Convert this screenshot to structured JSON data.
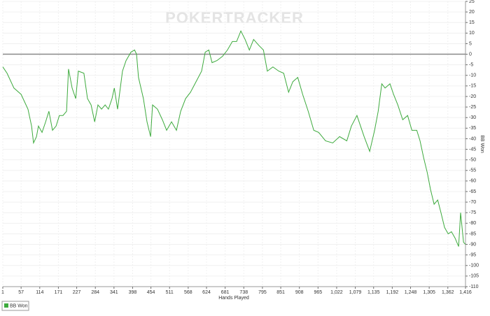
{
  "chart_data": {
    "type": "line",
    "watermark": "POKERTRACKER",
    "xlabel": "Hands Played",
    "ylabel": "BB Won",
    "x": [
      1,
      14,
      35,
      57,
      78,
      89,
      95,
      104,
      110,
      121,
      132,
      142,
      153,
      164,
      174,
      185,
      196,
      202,
      213,
      224,
      232,
      249,
      260,
      271,
      282,
      292,
      303,
      314,
      324,
      335,
      342,
      352,
      367,
      378,
      393,
      404,
      410,
      416,
      431,
      442,
      453,
      459,
      474,
      489,
      502,
      517,
      532,
      545,
      560,
      575,
      592,
      609,
      620,
      631,
      641,
      656,
      673,
      688,
      703,
      716,
      729,
      742,
      755,
      768,
      785,
      798,
      810,
      827,
      845,
      860,
      875,
      888,
      903,
      918,
      935,
      952,
      967,
      988,
      1010,
      1031,
      1053,
      1067,
      1084,
      1095,
      1106,
      1123,
      1138,
      1149,
      1160,
      1170,
      1185,
      1196,
      1209,
      1224,
      1239,
      1252,
      1267,
      1277,
      1288,
      1299,
      1309,
      1320,
      1331,
      1341,
      1352,
      1363,
      1373,
      1384,
      1395,
      1401,
      1410,
      1416
    ],
    "series": [
      {
        "name": "BB Won",
        "color": "#3daa3d",
        "values": [
          -6,
          -9,
          -16,
          -19,
          -26,
          -34,
          -42,
          -39,
          -34,
          -37,
          -32,
          -27,
          -36,
          -34,
          -29,
          -29,
          -27,
          -7,
          -16,
          -21,
          -8,
          -9,
          -21,
          -24,
          -32,
          -24,
          -26,
          -24,
          -26,
          -21,
          -16,
          -26,
          -8,
          -3,
          1,
          2,
          0,
          -11,
          -21,
          -32,
          -39,
          -24,
          -26,
          -31,
          -36,
          -32,
          -36,
          -27,
          -21,
          -18,
          -13,
          -8,
          1,
          2,
          -4,
          -3,
          -1,
          2,
          6,
          6,
          11,
          7,
          2,
          7,
          4,
          2,
          -8,
          -6,
          -8,
          -9,
          -18,
          -13,
          -11,
          -19,
          -27,
          -36,
          -37,
          -41,
          -42,
          -39,
          -41,
          -34,
          -29,
          -34,
          -39,
          -46,
          -36,
          -27,
          -14,
          -16,
          -14,
          -19,
          -24,
          -31,
          -29,
          -36,
          -36,
          -41,
          -49,
          -56,
          -64,
          -71,
          -69,
          -75,
          -82,
          -85,
          -84,
          -87,
          -91,
          -75,
          -89,
          -90
        ]
      }
    ],
    "xlim": [
      1,
      1416
    ],
    "xticks": [
      1,
      57,
      114,
      171,
      227,
      284,
      341,
      398,
      454,
      511,
      568,
      624,
      681,
      738,
      795,
      851,
      908,
      965,
      {
        "value": 1022,
        "label": "1,022"
      },
      {
        "value": 1079,
        "label": "1,079"
      },
      {
        "value": 1135,
        "label": "1,135"
      },
      {
        "value": 1192,
        "label": "1,192"
      },
      {
        "value": 1248,
        "label": "1,248"
      },
      {
        "value": 1305,
        "label": "1,305"
      },
      {
        "value": 1362,
        "label": "1,362"
      },
      {
        "value": 1416,
        "label": "1,416"
      }
    ],
    "ylim": [
      -110,
      25
    ],
    "yticks": [
      25,
      20,
      15,
      10,
      5,
      0,
      -5,
      -10,
      -15,
      -20,
      -25,
      -30,
      -35,
      -40,
      -45,
      -50,
      -55,
      -60,
      -65,
      -70,
      -75,
      -80,
      -85,
      -90,
      -95,
      -100,
      -105,
      -110
    ],
    "grid": true
  }
}
